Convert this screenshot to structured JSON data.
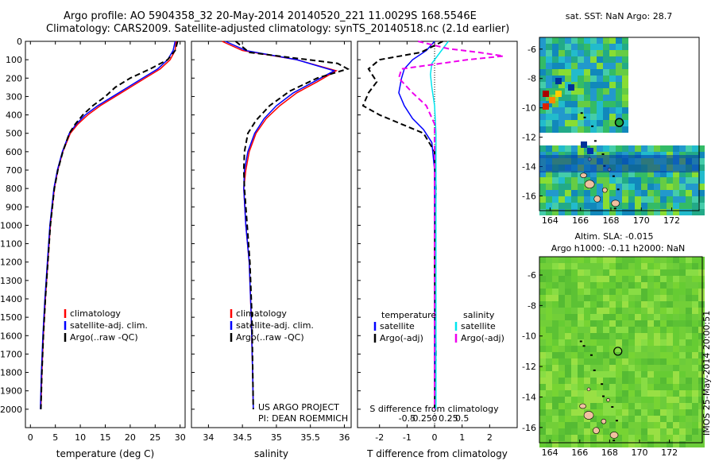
{
  "header": {
    "title_line1": "Argo profile: AO 5904358_32 20-May-2014 20140520_221 11.0029S 168.5546E",
    "title_line2": "Climatology: CARS2009. Satellite-adjusted climatology: synTS_20140518.nc (2.1d earlier)"
  },
  "colors": {
    "climatology": "#ff0000",
    "satellite": "#0000ff",
    "argo": "#000000",
    "sat_salinity": "#00e5ee",
    "argo_salinity": "#ee00ee",
    "island": "#f0c0a0"
  },
  "chart_data": [
    {
      "type": "line",
      "id": "temperature",
      "xlabel": "temperature (deg C)",
      "ylabel": "",
      "xlim": [
        -1,
        31
      ],
      "ylim": [
        2100,
        0
      ],
      "xticks": [
        0,
        5,
        10,
        15,
        20,
        25,
        30
      ],
      "yticks": [
        0,
        100,
        200,
        300,
        400,
        500,
        600,
        700,
        800,
        900,
        1000,
        1100,
        1200,
        1300,
        1400,
        1500,
        1600,
        1700,
        1800,
        1900,
        2000
      ],
      "legend": [
        "climatology",
        "satellite-adj. clim.",
        "Argo(..raw -QC)"
      ],
      "series": [
        {
          "name": "climatology",
          "color": "#ff0000",
          "style": "solid",
          "x": [
            29.2,
            29,
            28,
            26,
            23,
            20,
            17,
            14,
            11.5,
            9.5,
            8,
            6.5,
            5.5,
            4.8,
            4,
            3.5,
            3,
            2.6,
            2.3,
            2.1
          ],
          "y": [
            0,
            50,
            100,
            150,
            200,
            250,
            300,
            350,
            400,
            450,
            500,
            600,
            700,
            800,
            1000,
            1200,
            1400,
            1600,
            1800,
            2000
          ]
        },
        {
          "name": "satellite-adj. clim.",
          "color": "#0000ff",
          "style": "solid",
          "x": [
            29,
            28.6,
            27.5,
            25.5,
            22.5,
            19.5,
            16.5,
            13.5,
            11,
            9.2,
            7.8,
            6.4,
            5.4,
            4.7,
            3.9,
            3.4,
            2.9,
            2.5,
            2.2,
            2.0
          ],
          "y": [
            0,
            50,
            100,
            150,
            200,
            250,
            300,
            350,
            400,
            450,
            500,
            600,
            700,
            800,
            1000,
            1200,
            1400,
            1600,
            1800,
            2000
          ]
        },
        {
          "name": "Argo(..raw -QC)",
          "color": "#000000",
          "style": "dashed",
          "x": [
            29.5,
            29,
            27.5,
            24,
            20,
            17,
            15,
            12.5,
            10.5,
            9,
            7.8,
            6.5,
            5.5,
            4.8,
            4,
            3.5,
            3,
            2.6,
            2.3,
            2.1
          ],
          "y": [
            0,
            50,
            100,
            150,
            200,
            250,
            300,
            350,
            400,
            450,
            500,
            600,
            700,
            800,
            1000,
            1200,
            1400,
            1600,
            1800,
            2000
          ]
        }
      ]
    },
    {
      "type": "line",
      "id": "salinity",
      "xlabel": "salinity",
      "ylabel": "",
      "xlim": [
        33.75,
        36.1
      ],
      "ylim": [
        2100,
        0
      ],
      "xticks": [
        34,
        34.5,
        35,
        35.5,
        36
      ],
      "legend": [
        "climatology",
        "satellite-adj. clim.",
        "Argo(..raw -QC)"
      ],
      "annotation_line1": "US ARGO PROJECT",
      "annotation_line2": "PI: DEAN ROEMMICH",
      "series": [
        {
          "name": "climatology",
          "color": "#ff0000",
          "style": "solid",
          "x": [
            34.2,
            34.5,
            35.3,
            35.88,
            35.6,
            35.3,
            35.05,
            34.85,
            34.7,
            34.6,
            34.55,
            34.52,
            34.55,
            34.6,
            34.63,
            34.65,
            34.66
          ],
          "y": [
            0,
            50,
            100,
            160,
            220,
            280,
            350,
            420,
            500,
            600,
            700,
            800,
            1000,
            1200,
            1500,
            1800,
            2000
          ]
        },
        {
          "name": "satellite-adj. clim.",
          "color": "#0000ff",
          "style": "solid",
          "x": [
            34.25,
            34.55,
            35.3,
            35.85,
            35.55,
            35.25,
            35,
            34.82,
            34.68,
            34.58,
            34.53,
            34.52,
            34.55,
            34.6,
            34.63,
            34.65,
            34.66
          ],
          "y": [
            0,
            50,
            100,
            160,
            220,
            280,
            350,
            420,
            500,
            600,
            700,
            800,
            1000,
            1200,
            1500,
            1800,
            2000
          ]
        },
        {
          "name": "Argo(..raw -QC)",
          "color": "#000000",
          "style": "dashed",
          "x": [
            34.4,
            34.6,
            35.9,
            36.05,
            35.6,
            35.2,
            34.9,
            34.7,
            34.58,
            34.53,
            34.52,
            34.53,
            34.57,
            34.61,
            34.64,
            34.66
          ],
          "y": [
            0,
            60,
            120,
            150,
            200,
            270,
            350,
            430,
            500,
            600,
            700,
            800,
            1000,
            1200,
            1500,
            2000
          ]
        }
      ]
    },
    {
      "type": "line",
      "id": "difference",
      "xlabel": "T difference from climatology",
      "xlabel_top": "S difference from climatology",
      "xlim": [
        -2.8,
        3
      ],
      "ylim": [
        2100,
        0
      ],
      "xticks": [
        -2,
        -1,
        0,
        1,
        2
      ],
      "xticks_top": [
        "-0.5",
        "-0.25",
        "0",
        "0.25",
        "0.5"
      ],
      "legend_left_title": "temperature",
      "legend_right_title": "salinity",
      "legend": [
        "satellite",
        "Argo(-adj)",
        "satellite",
        "Argo(-adj)"
      ],
      "series": [
        {
          "name": "satellite",
          "color": "#0000ff",
          "style": "solid",
          "x": [
            0,
            -0.3,
            -0.8,
            -1.1,
            -1.2,
            -1.3,
            -1.1,
            -0.8,
            -0.4,
            -0.1,
            0,
            0,
            0
          ],
          "y": [
            0,
            50,
            100,
            150,
            200,
            280,
            350,
            420,
            480,
            550,
            700,
            1000,
            2000
          ]
        },
        {
          "name": "Argo(-adj)",
          "color": "#000000",
          "style": "dashed",
          "x": [
            0.3,
            -0.5,
            -2,
            -2.4,
            -2.1,
            -2.4,
            -2.6,
            -2,
            -1.2,
            -0.4,
            0,
            0.05,
            0,
            0.05,
            0
          ],
          "y": [
            0,
            60,
            100,
            150,
            220,
            280,
            350,
            400,
            450,
            500,
            600,
            800,
            1200,
            1700,
            2000
          ]
        },
        {
          "name": "satellite",
          "color": "#00e5ee",
          "style": "solid",
          "x": [
            0.5,
            0.2,
            -0.1,
            -0.15,
            -0.1,
            0,
            0.05,
            0.05,
            0.05,
            0.05
          ],
          "y": [
            0,
            60,
            120,
            180,
            250,
            350,
            500,
            800,
            1400,
            2000
          ]
        },
        {
          "name": "Argo(-adj)",
          "color": "#ee00ee",
          "style": "dashed",
          "x": [
            -0.6,
            0.5,
            1.6,
            2.5,
            1.2,
            -1.2,
            -1.3,
            -0.8,
            -0.3,
            0,
            0,
            0,
            0
          ],
          "y": [
            0,
            40,
            60,
            80,
            100,
            150,
            200,
            280,
            350,
            450,
            600,
            1000,
            2000
          ]
        }
      ]
    },
    {
      "type": "heatmap",
      "id": "sst_map",
      "title": "sat. SST: NaN Argo: 28.7",
      "xticks": [
        164,
        166,
        168,
        170,
        172
      ],
      "yticks": [
        -6,
        -8,
        -10,
        -12,
        -14,
        -16
      ],
      "xlim": [
        163.3,
        173.8
      ],
      "ylim": [
        -17,
        -5.2
      ]
    },
    {
      "type": "heatmap",
      "id": "sla_map",
      "title_line1": "Altim. SLA: -0.015",
      "title_line2": "Argo h1000: -0.11 h2000: NaN",
      "xticks": [
        164,
        166,
        168,
        170,
        172
      ],
      "yticks": [
        -6,
        -8,
        -10,
        -12,
        -14,
        -16
      ],
      "xlim": [
        163.3,
        174.2
      ],
      "ylim": [
        -17,
        -4.8
      ]
    }
  ],
  "footer": {
    "stamp": "IMOS 25-May-2014 20:00:51"
  }
}
